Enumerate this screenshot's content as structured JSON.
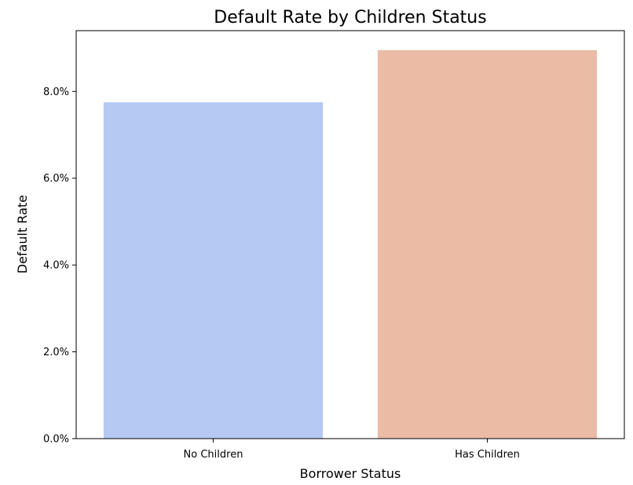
{
  "chart_data": {
    "type": "bar",
    "title": "Default Rate by Children Status",
    "xlabel": "Borrower Status",
    "ylabel": "Default Rate",
    "categories": [
      "No Children",
      "Has Children"
    ],
    "values": [
      0.0775,
      0.0895
    ],
    "ylim": [
      0,
      0.094
    ],
    "yticks": [
      0,
      0.02,
      0.04,
      0.06,
      0.08
    ],
    "ytick_labels": [
      "0.0%",
      "2.0%",
      "4.0%",
      "6.0%",
      "8.0%"
    ],
    "colors": [
      "#b5c9f2",
      "#ebbba5"
    ],
    "grid": false,
    "legend": "none"
  }
}
